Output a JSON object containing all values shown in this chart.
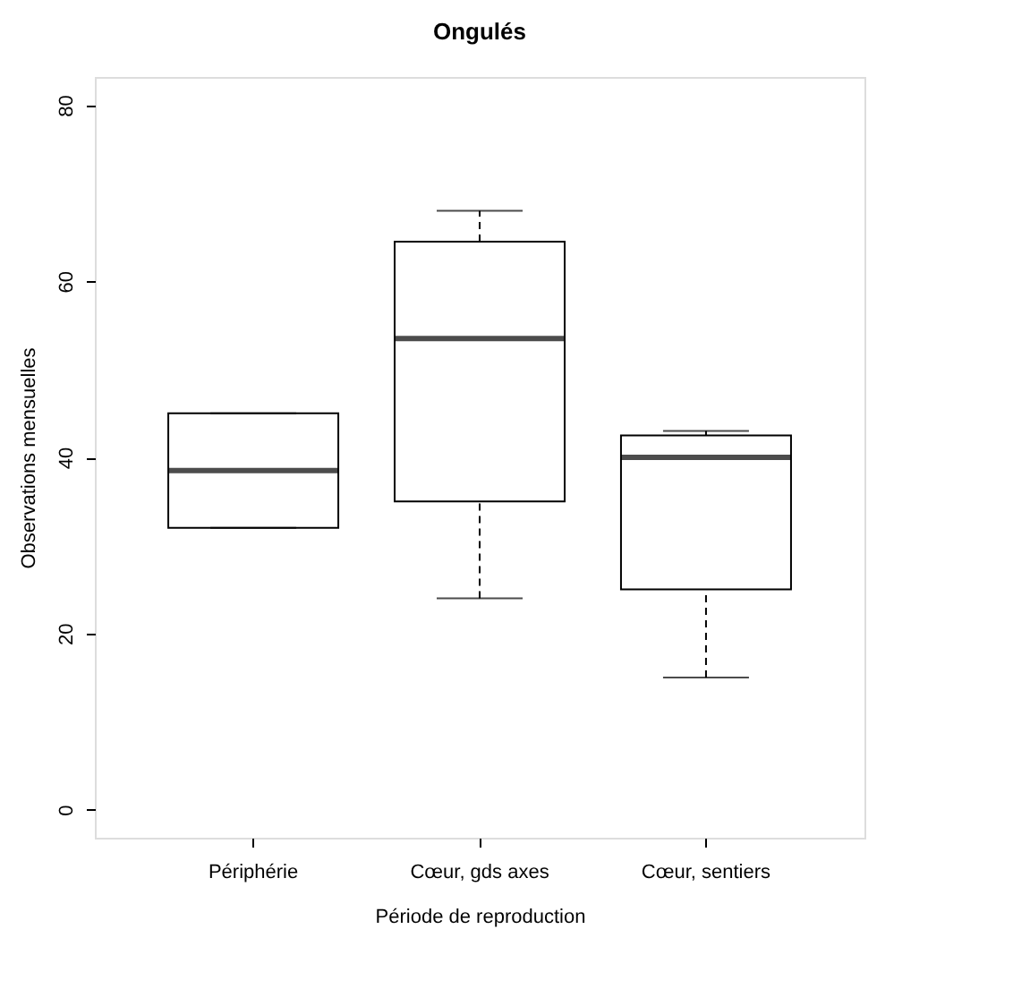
{
  "chart_data": {
    "type": "box",
    "title": "Ongulés",
    "xlabel": "Période de reproduction",
    "ylabel": "Observations mensuelles",
    "categories": [
      "Périphérie",
      "Cœur, gds axes",
      "Cœur, sentiers"
    ],
    "boxes": [
      {
        "low": 32,
        "q1": 32,
        "median": 38.5,
        "q3": 45,
        "high": 45
      },
      {
        "low": 24,
        "q1": 35,
        "median": 53.5,
        "q3": 64.5,
        "high": 68
      },
      {
        "low": 15,
        "q1": 25,
        "median": 40,
        "q3": 42.5,
        "high": 43
      }
    ],
    "ylim": [
      -3.2,
      83.2
    ],
    "yticks": [
      0,
      20,
      40,
      60,
      80
    ],
    "grid": false
  }
}
